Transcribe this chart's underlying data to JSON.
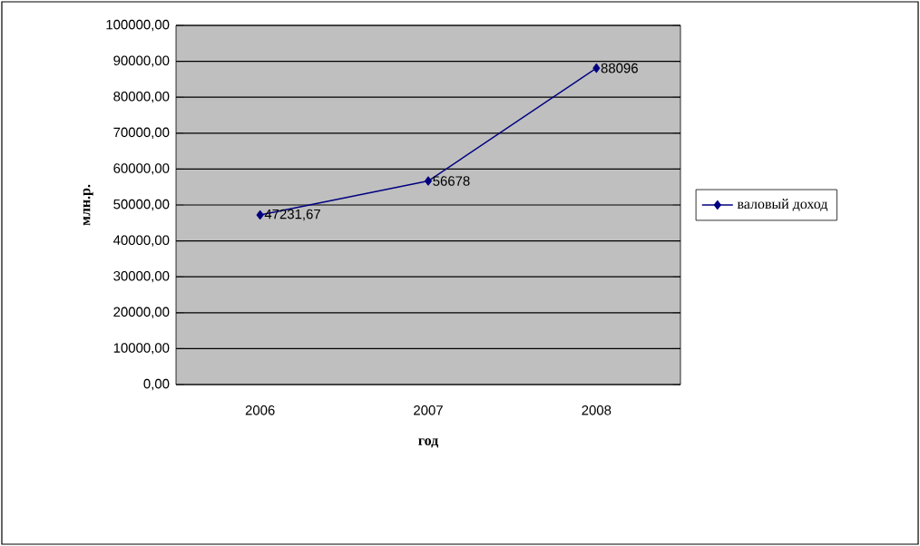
{
  "chart_data": {
    "type": "line",
    "xlabel": "год",
    "ylabel": "млн.р.",
    "categories": [
      "2006",
      "2007",
      "2008"
    ],
    "series": [
      {
        "name": "валовый доход",
        "color": "#000080",
        "values": [
          47231.67,
          56678,
          88096
        ],
        "value_labels": [
          "47231,67",
          "56678",
          "88096"
        ]
      }
    ],
    "ylim": [
      0,
      100000
    ],
    "yticks": [
      {
        "value": 0,
        "label": "0,00"
      },
      {
        "value": 10000,
        "label": "10000,00"
      },
      {
        "value": 20000,
        "label": "20000,00"
      },
      {
        "value": 30000,
        "label": "30000,00"
      },
      {
        "value": 40000,
        "label": "40000,00"
      },
      {
        "value": 50000,
        "label": "50000,00"
      },
      {
        "value": 60000,
        "label": "60000,00"
      },
      {
        "value": 70000,
        "label": "70000,00"
      },
      {
        "value": 80000,
        "label": "80000,00"
      },
      {
        "value": 90000,
        "label": "90000,00"
      },
      {
        "value": 100000,
        "label": "100000,00"
      }
    ],
    "grid": "y",
    "legend": "right",
    "marker": "diamond",
    "line_style": "solid"
  }
}
